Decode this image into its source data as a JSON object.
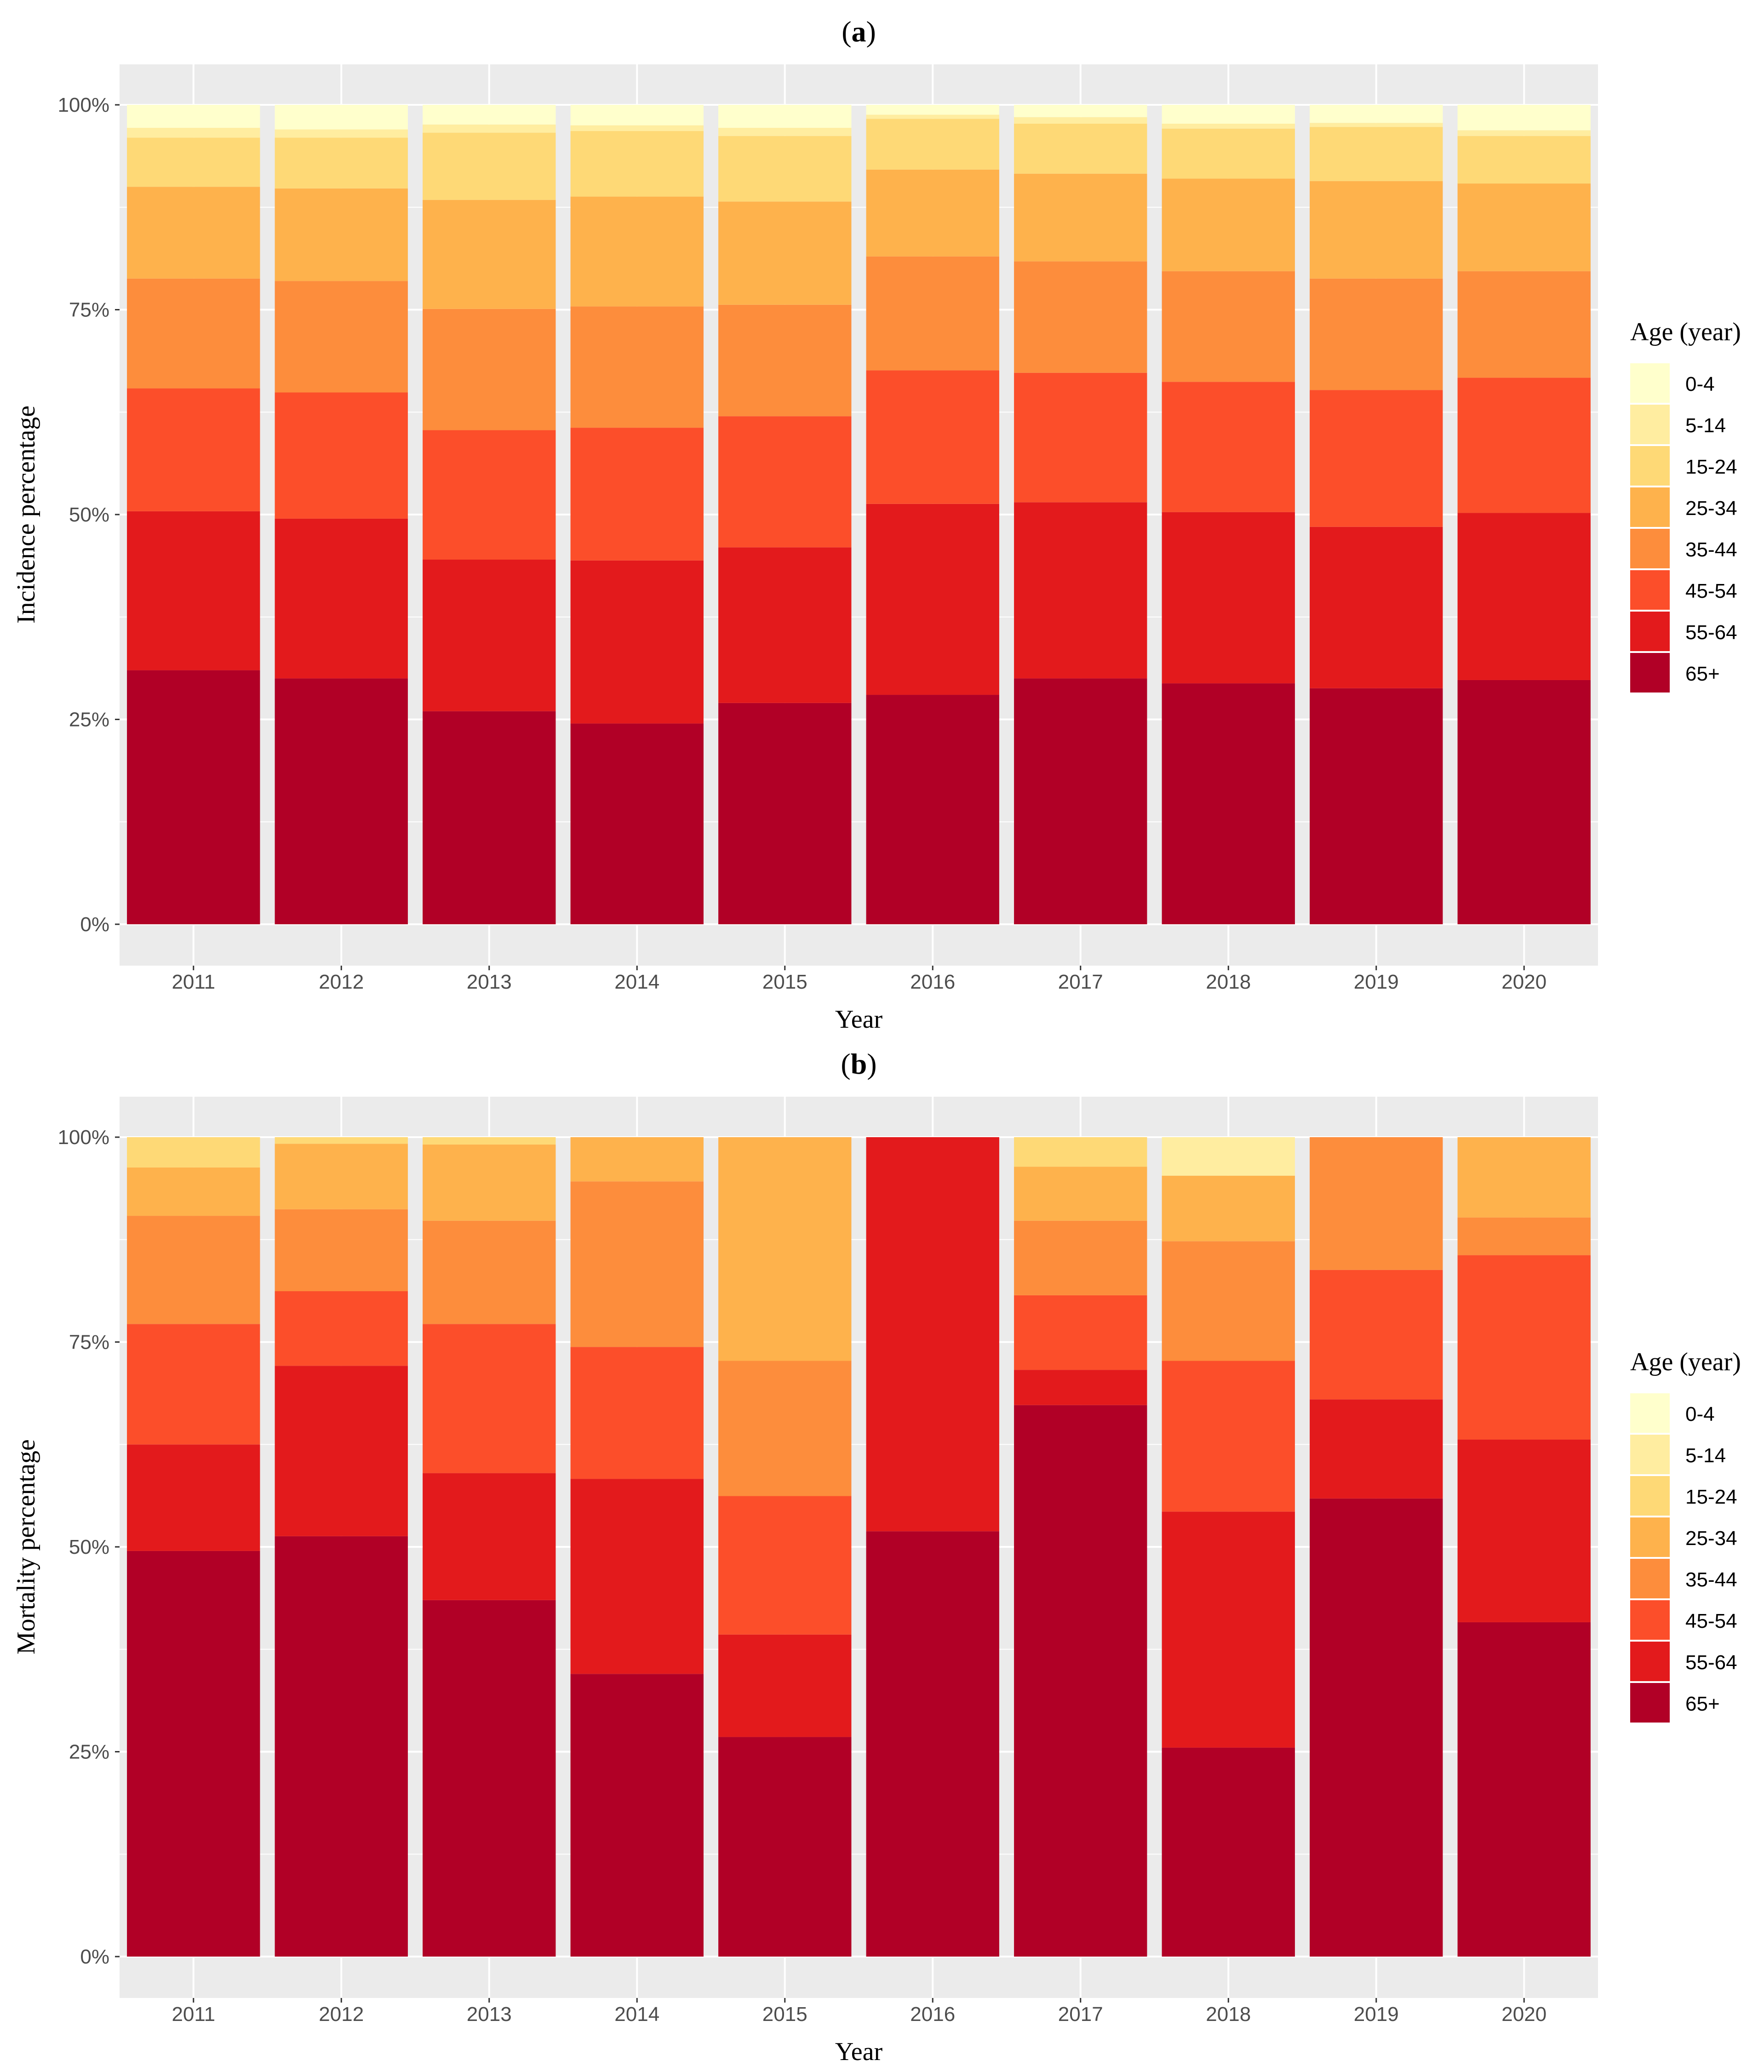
{
  "chart_data": [
    {
      "panel": "(a)",
      "panel_letter": "a",
      "type": "bar",
      "stacked": true,
      "xlabel": "Year",
      "ylabel": "Incidence percentage",
      "ylim": [
        0,
        100
      ],
      "yticks": [
        "0%",
        "25%",
        "50%",
        "75%",
        "100%"
      ],
      "categories": [
        "2011",
        "2012",
        "2013",
        "2014",
        "2015",
        "2016",
        "2017",
        "2018",
        "2019",
        "2020"
      ],
      "legend_title": "Age (year)",
      "series": [
        {
          "name": "65+",
          "color": "#b10026",
          "values": [
            31.0,
            30.0,
            26.0,
            24.5,
            27.0,
            28.0,
            30.0,
            29.4,
            28.8,
            29.8
          ]
        },
        {
          "name": "55-64",
          "color": "#e31a1c",
          "values": [
            19.4,
            19.5,
            18.5,
            19.9,
            19.0,
            23.3,
            21.5,
            20.9,
            19.7,
            20.4
          ]
        },
        {
          "name": "45-54",
          "color": "#fc4e2a",
          "values": [
            15.0,
            15.4,
            15.8,
            16.2,
            16.0,
            16.3,
            15.8,
            15.9,
            16.7,
            16.5
          ]
        },
        {
          "name": "35-44",
          "color": "#fd8d3c",
          "values": [
            13.4,
            13.6,
            14.8,
            14.8,
            13.6,
            13.9,
            13.6,
            13.5,
            13.6,
            13.0
          ]
        },
        {
          "name": "25-34",
          "color": "#feb24c",
          "values": [
            11.2,
            11.3,
            13.3,
            13.4,
            12.6,
            10.6,
            10.7,
            11.3,
            11.9,
            10.7
          ]
        },
        {
          "name": "15-24",
          "color": "#fed976",
          "values": [
            6.0,
            6.2,
            8.2,
            8.0,
            8.0,
            6.2,
            6.1,
            6.1,
            6.6,
            5.8
          ]
        },
        {
          "name": "5-14",
          "color": "#ffeda0",
          "values": [
            1.2,
            1.0,
            1.0,
            0.7,
            1.0,
            0.5,
            0.8,
            0.6,
            0.5,
            0.7
          ]
        },
        {
          "name": "0-4",
          "color": "#ffffcc",
          "values": [
            2.8,
            3.0,
            2.4,
            2.5,
            2.8,
            1.2,
            1.5,
            2.3,
            2.2,
            3.1
          ]
        }
      ]
    },
    {
      "panel": "(b)",
      "panel_letter": "b",
      "type": "bar",
      "stacked": true,
      "xlabel": "Year",
      "ylabel": "Mortality percentage",
      "ylim": [
        0,
        100
      ],
      "yticks": [
        "0%",
        "25%",
        "50%",
        "75%",
        "100%"
      ],
      "categories": [
        "2011",
        "2012",
        "2013",
        "2014",
        "2015",
        "2016",
        "2017",
        "2018",
        "2019",
        "2020"
      ],
      "legend_title": "Age (year)",
      "series": [
        {
          "name": "65+",
          "color": "#b10026",
          "values": [
            49.5,
            51.3,
            43.5,
            34.5,
            26.8,
            51.9,
            67.3,
            25.5,
            55.9,
            40.8
          ]
        },
        {
          "name": "55-64",
          "color": "#e31a1c",
          "values": [
            13.0,
            20.8,
            15.5,
            23.8,
            12.5,
            48.1,
            4.3,
            28.8,
            12.1,
            22.3
          ]
        },
        {
          "name": "45-54",
          "color": "#fc4e2a",
          "values": [
            14.7,
            9.1,
            18.2,
            16.1,
            16.9,
            0,
            9.1,
            18.4,
            15.8,
            22.5
          ]
        },
        {
          "name": "35-44",
          "color": "#fd8d3c",
          "values": [
            13.2,
            10.0,
            12.6,
            20.2,
            16.5,
            0,
            9.1,
            14.6,
            16.2,
            4.6
          ]
        },
        {
          "name": "25-34",
          "color": "#feb24c",
          "values": [
            5.9,
            8.0,
            9.3,
            5.4,
            27.3,
            0,
            6.6,
            8.0,
            0,
            9.8
          ]
        },
        {
          "name": "15-24",
          "color": "#fed976",
          "values": [
            3.7,
            0.8,
            0.9,
            0,
            0,
            0,
            3.6,
            0,
            0,
            0
          ]
        },
        {
          "name": "5-14",
          "color": "#ffeda0",
          "values": [
            0,
            0,
            0,
            0,
            0,
            0,
            0,
            4.7,
            0,
            0
          ]
        },
        {
          "name": "0-4",
          "color": "#ffffcc",
          "values": [
            0,
            0,
            0,
            0,
            0,
            0,
            0,
            0,
            0,
            0
          ]
        }
      ]
    }
  ]
}
